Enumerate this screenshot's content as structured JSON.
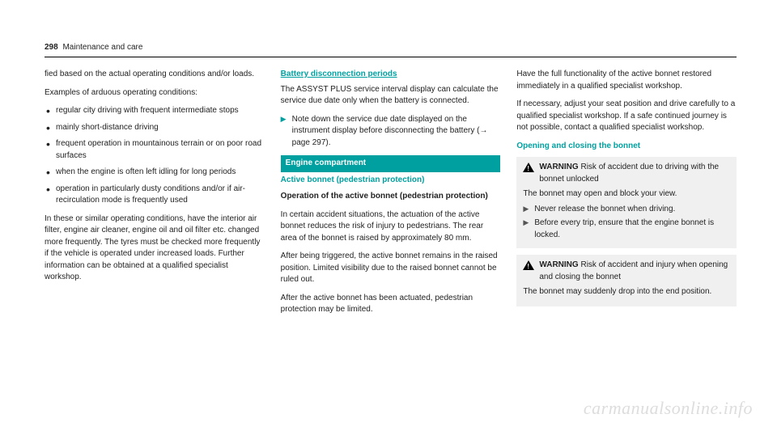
{
  "header": {
    "page_number": "298",
    "title": "Maintenance and care"
  },
  "col1": {
    "intro": "fied based on the actual operating conditions and/or loads.",
    "examples_label": "Examples of arduous operating conditions:",
    "bullets": [
      "regular city driving with frequent intermediate stops",
      "mainly short-distance driving",
      "frequent operation in mountainous terrain or on poor road surfaces",
      "when the engine is often left idling for long periods",
      "operation in particularly dusty conditions and/or if air-recirculation mode is frequently used"
    ],
    "closing": "In these or similar operating conditions, have the interior air filter, engine air cleaner, engine oil and oil filter etc. changed more frequently. The tyres must be checked more frequently if the vehicle is operated under increased loads. Further information can be obtained at a qualified specialist workshop."
  },
  "col2": {
    "battery_heading": "Battery disconnection periods",
    "battery_text": "The ASSYST PLUS service interval display can calculate the service due date only when the battery is connected.",
    "battery_instruction": "Note down the service due date displayed on the instrument display before disconnecting the battery (→ page 297).",
    "engine_banner": "Engine compartment",
    "active_bonnet_sub": "Active bonnet (pedestrian protection)",
    "operation_heading": "Operation of the active bonnet (pedestrian protection)",
    "operation_p1": "In certain accident situations, the actuation of the active bonnet reduces the risk of injury to pedestrians. The rear area of the bonnet is raised by approximately 80 mm.",
    "operation_p2": "After being triggered, the active bonnet remains in the raised position. Limited visibility due to the raised bonnet cannot be ruled out.",
    "operation_p3": "After the active bonnet has been actuated, pedestrian protection may be limited."
  },
  "col3": {
    "intro_p1": "Have the full functionality of the active bonnet restored immediately in a qualified specialist workshop.",
    "intro_p2": "If necessary, adjust your seat position and drive carefully to a qualified specialist workshop. If a safe continued journey is not possible, contact a qualified specialist workshop.",
    "opening_heading": "Opening and closing the bonnet",
    "warning_label": "WARNING",
    "warn1_title": "Risk of accident due to driving with the bonnet unlocked",
    "warn1_body": "The bonnet may open and block your view.",
    "warn1_instr1": "Never release the bonnet when driving.",
    "warn1_instr2": "Before every trip, ensure that the engine bonnet is locked.",
    "warn2_title": "Risk of accident and injury when opening and closing the bonnet",
    "warn2_body": "The bonnet may suddenly drop into the end position."
  },
  "watermark": "carmanualsonline.info"
}
